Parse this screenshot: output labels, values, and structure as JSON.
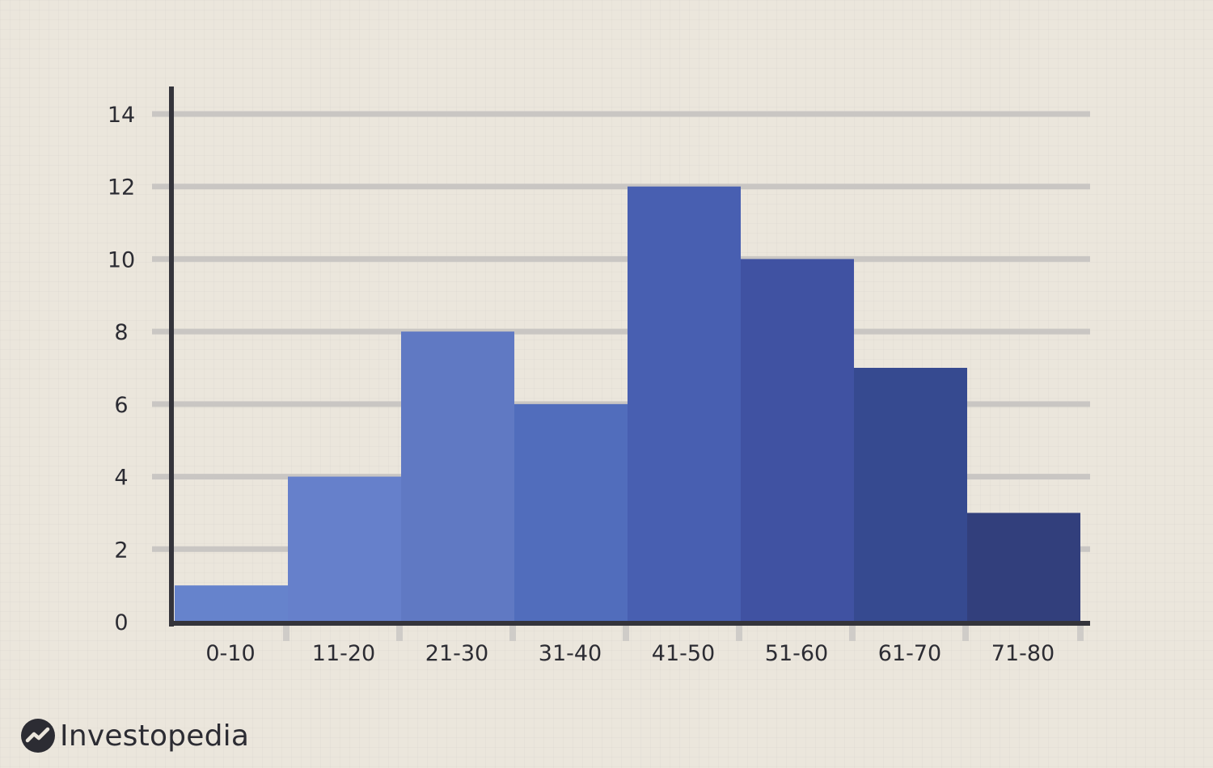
{
  "brand": {
    "name": "Investopedia",
    "icon": "investopedia-logo-icon"
  },
  "colors": {
    "background": "#ebe6dc",
    "gridline": "#c9c6c3",
    "axis": "#34343b",
    "text": "#2c2c33",
    "bars": [
      "#6683cc",
      "#6680cb",
      "#6079c3",
      "#516dbc",
      "#485fb1",
      "#4052a2",
      "#364a90",
      "#323f7c"
    ]
  },
  "chart_data": {
    "type": "bar",
    "categories": [
      "0-10",
      "11-20",
      "21-30",
      "31-40",
      "41-50",
      "51-60",
      "61-70",
      "71-80"
    ],
    "values": [
      1,
      4,
      8,
      6,
      12,
      10,
      7,
      3
    ],
    "yticks": [
      "0",
      "2",
      "4",
      "6",
      "8",
      "10",
      "12",
      "14"
    ],
    "ylim": [
      0,
      14
    ],
    "title": "",
    "xlabel": "",
    "ylabel": "",
    "grid": true,
    "legend": "none"
  }
}
